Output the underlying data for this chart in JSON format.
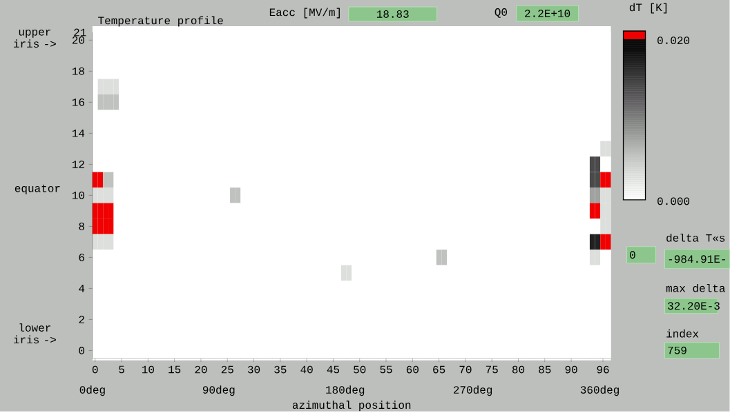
{
  "chart_data": {
    "type": "heatmap",
    "title": "Temperature profile",
    "xlabel": "azimuthal position",
    "clabel": "dT [K]",
    "categories": [
      "0",
      null,
      null,
      null,
      null,
      "5",
      null,
      null,
      null,
      null,
      "10",
      null,
      null,
      null,
      null,
      "15",
      null,
      null,
      null,
      null,
      "20",
      null,
      null,
      null,
      null,
      "25",
      null,
      null,
      null,
      null,
      "30",
      null,
      null,
      null,
      null,
      "35",
      null,
      null,
      null,
      null,
      "40",
      null,
      null,
      null,
      null,
      "45",
      null,
      null,
      null,
      null,
      "50",
      null,
      null,
      null,
      null,
      "55",
      null,
      null,
      null,
      null,
      "60",
      null,
      null,
      null,
      null,
      "65",
      null,
      null,
      null,
      null,
      "70",
      null,
      null,
      null,
      null,
      "75",
      null,
      null,
      null,
      null,
      "80",
      null,
      null,
      null,
      null,
      "85",
      null,
      null,
      null,
      null,
      "90",
      null,
      null,
      null,
      null,
      null,
      "96",
      null
    ],
    "y_categories": [
      "20",
      null,
      "18",
      null,
      "16",
      null,
      "14",
      null,
      "12",
      null,
      "10",
      null,
      "8",
      null,
      "6",
      null,
      "4",
      null,
      "2",
      null,
      "0"
    ],
    "cells": [
      [
        0,
        0,
        0,
        0,
        0,
        0,
        0,
        0,
        0,
        0,
        0,
        0,
        0,
        0,
        0,
        0,
        0,
        0,
        0,
        0,
        0,
        0,
        0,
        0,
        0,
        0,
        0,
        0,
        0,
        0,
        0,
        0,
        0,
        0,
        0,
        0,
        0,
        0,
        0,
        0,
        0,
        0,
        0,
        0,
        0,
        0,
        0,
        0,
        0,
        0,
        0,
        0,
        0,
        0,
        0,
        0,
        0,
        0,
        0,
        0,
        0,
        0,
        0,
        0,
        0,
        0,
        0,
        0,
        0,
        0,
        0,
        0,
        0,
        0,
        0,
        0,
        0,
        0,
        0,
        0,
        0,
        0,
        0,
        0,
        0,
        0,
        0,
        0,
        0,
        0,
        0,
        0,
        0,
        0,
        0,
        0,
        0,
        0
      ],
      [
        0,
        0,
        0,
        0,
        0,
        0,
        0,
        0,
        0,
        0,
        0,
        0,
        0,
        0,
        0,
        0,
        0,
        0,
        0,
        0,
        0,
        0,
        0,
        0,
        0,
        0,
        0,
        0,
        0,
        0,
        0,
        0,
        0,
        0,
        0,
        0,
        0,
        0,
        0,
        0,
        0,
        0,
        0,
        0,
        0,
        0,
        0,
        0,
        0,
        0,
        0,
        0,
        0,
        0,
        0,
        0,
        0,
        0,
        0,
        0,
        0,
        0,
        0,
        0,
        0,
        0,
        0,
        0,
        0,
        0,
        0,
        0,
        0,
        0,
        0,
        0,
        0,
        0,
        0,
        0,
        0,
        0,
        0,
        0,
        0,
        0,
        0,
        0,
        0,
        0,
        0,
        0,
        0,
        0,
        0,
        0,
        0,
        0
      ],
      [
        0,
        0,
        0,
        0,
        0,
        0,
        0,
        0,
        0,
        0,
        0,
        0,
        0,
        0,
        0,
        0,
        0,
        0,
        0,
        0,
        0,
        0,
        0,
        0,
        0,
        0,
        0,
        0,
        0,
        0,
        0,
        0,
        0,
        0,
        0,
        0,
        0,
        0,
        0,
        0,
        0,
        0,
        0,
        0,
        0,
        0,
        0,
        0,
        0,
        0,
        0,
        0,
        0,
        0,
        0,
        0,
        0,
        0,
        0,
        0,
        0,
        0,
        0,
        0,
        0,
        0,
        0,
        0,
        0,
        0,
        0,
        0,
        0,
        0,
        0,
        0,
        0,
        0,
        0,
        0,
        0,
        0,
        0,
        0,
        0,
        0,
        0,
        0,
        0,
        0,
        0,
        0,
        0,
        0,
        0,
        0,
        0,
        0
      ],
      [
        0,
        0.0033,
        0.0033,
        0.0033,
        0.0033,
        0,
        0,
        0,
        0,
        0,
        0,
        0,
        0,
        0,
        0,
        0,
        0,
        0,
        0,
        0,
        0,
        0,
        0,
        0,
        0,
        0,
        0,
        0,
        0,
        0,
        0,
        0,
        0,
        0,
        0,
        0,
        0,
        0,
        0,
        0,
        0,
        0,
        0,
        0,
        0,
        0,
        0,
        0,
        0,
        0,
        0,
        0,
        0,
        0,
        0,
        0,
        0,
        0,
        0,
        0,
        0,
        0,
        0,
        0,
        0,
        0,
        0,
        0,
        0,
        0,
        0,
        0,
        0,
        0,
        0,
        0,
        0,
        0,
        0,
        0,
        0,
        0,
        0,
        0,
        0,
        0,
        0,
        0,
        0,
        0,
        0,
        0,
        0,
        0,
        0,
        0,
        0,
        0
      ],
      [
        0,
        0.0056,
        0.0056,
        0.0056,
        0.0056,
        0,
        0,
        0,
        0,
        0,
        0,
        0,
        0,
        0,
        0,
        0,
        0,
        0,
        0,
        0,
        0,
        0,
        0,
        0,
        0,
        0,
        0,
        0,
        0,
        0,
        0,
        0,
        0,
        0,
        0,
        0,
        0,
        0,
        0,
        0,
        0,
        0,
        0,
        0,
        0,
        0,
        0,
        0,
        0,
        0,
        0,
        0,
        0,
        0,
        0,
        0,
        0,
        0,
        0,
        0,
        0,
        0,
        0,
        0,
        0,
        0,
        0,
        0,
        0,
        0,
        0,
        0,
        0,
        0,
        0,
        0,
        0,
        0,
        0,
        0,
        0,
        0,
        0,
        0,
        0,
        0,
        0,
        0,
        0,
        0,
        0,
        0,
        0,
        0,
        0,
        0,
        0,
        0
      ],
      [
        0,
        0,
        0,
        0,
        0,
        0,
        0,
        0,
        0,
        0,
        0,
        0,
        0,
        0,
        0,
        0,
        0,
        0,
        0,
        0,
        0,
        0,
        0,
        0,
        0,
        0,
        0,
        0,
        0,
        0,
        0,
        0,
        0,
        0,
        0,
        0,
        0,
        0,
        0,
        0,
        0,
        0,
        0,
        0,
        0,
        0,
        0,
        0,
        0,
        0,
        0,
        0,
        0,
        0,
        0,
        0,
        0,
        0,
        0,
        0,
        0,
        0,
        0,
        0,
        0,
        0,
        0,
        0,
        0,
        0,
        0,
        0,
        0,
        0,
        0,
        0,
        0,
        0,
        0,
        0,
        0,
        0,
        0,
        0,
        0,
        0,
        0,
        0,
        0,
        0,
        0,
        0,
        0,
        0,
        0,
        0,
        0,
        0
      ],
      [
        0,
        0,
        0,
        0,
        0,
        0,
        0,
        0,
        0,
        0,
        0,
        0,
        0,
        0,
        0,
        0,
        0,
        0,
        0,
        0,
        0,
        0,
        0,
        0,
        0,
        0,
        0,
        0,
        0,
        0,
        0,
        0,
        0,
        0,
        0,
        0,
        0,
        0,
        0,
        0,
        0,
        0,
        0,
        0,
        0,
        0,
        0,
        0,
        0,
        0,
        0,
        0,
        0,
        0,
        0,
        0,
        0,
        0,
        0,
        0,
        0,
        0,
        0,
        0,
        0,
        0,
        0,
        0,
        0,
        0,
        0,
        0,
        0,
        0,
        0,
        0,
        0,
        0,
        0,
        0,
        0,
        0,
        0,
        0,
        0,
        0,
        0,
        0,
        0,
        0,
        0,
        0,
        0,
        0,
        0,
        0,
        0,
        0
      ],
      [
        0,
        0,
        0,
        0,
        0,
        0,
        0,
        0,
        0,
        0,
        0,
        0,
        0,
        0,
        0,
        0,
        0,
        0,
        0,
        0,
        0,
        0,
        0,
        0,
        0,
        0,
        0,
        0,
        0,
        0,
        0,
        0,
        0,
        0,
        0,
        0,
        0,
        0,
        0,
        0,
        0,
        0,
        0,
        0,
        0,
        0,
        0,
        0,
        0,
        0,
        0,
        0,
        0,
        0,
        0,
        0,
        0,
        0,
        0,
        0,
        0,
        0,
        0,
        0,
        0,
        0,
        0,
        0,
        0,
        0,
        0,
        0,
        0,
        0,
        0,
        0,
        0,
        0,
        0,
        0,
        0,
        0,
        0,
        0,
        0,
        0,
        0,
        0,
        0,
        0,
        0,
        0,
        0,
        0,
        0,
        0,
        0.0033,
        0.0033
      ],
      [
        0,
        0,
        0,
        0,
        0,
        0,
        0,
        0,
        0,
        0,
        0,
        0,
        0,
        0,
        0,
        0,
        0,
        0,
        0,
        0,
        0,
        0,
        0,
        0,
        0,
        0,
        0,
        0,
        0,
        0,
        0,
        0,
        0,
        0,
        0,
        0,
        0,
        0,
        0,
        0,
        0,
        0,
        0,
        0,
        0,
        0,
        0,
        0,
        0,
        0,
        0,
        0,
        0,
        0,
        0,
        0,
        0,
        0,
        0,
        0,
        0,
        0,
        0,
        0,
        0,
        0,
        0,
        0,
        0,
        0,
        0,
        0,
        0,
        0,
        0,
        0,
        0,
        0,
        0,
        0,
        0,
        0,
        0,
        0,
        0,
        0,
        0,
        0,
        0,
        0,
        0,
        0,
        0,
        0,
        0.014,
        0.014,
        0,
        0
      ],
      [
        0.021,
        0.021,
        0.0056,
        0.0056,
        0,
        0,
        0,
        0,
        0,
        0,
        0,
        0,
        0,
        0,
        0,
        0,
        0,
        0,
        0,
        0,
        0,
        0,
        0,
        0,
        0,
        0,
        0,
        0,
        0,
        0,
        0,
        0,
        0,
        0,
        0,
        0,
        0,
        0,
        0,
        0,
        0,
        0,
        0,
        0,
        0,
        0,
        0,
        0,
        0,
        0,
        0,
        0,
        0,
        0,
        0,
        0,
        0,
        0,
        0,
        0,
        0,
        0,
        0,
        0,
        0,
        0,
        0,
        0,
        0,
        0,
        0,
        0,
        0,
        0,
        0,
        0,
        0,
        0,
        0,
        0,
        0,
        0,
        0,
        0,
        0,
        0,
        0,
        0,
        0,
        0,
        0,
        0,
        0,
        0,
        0.014,
        0.014,
        0.021,
        0.021
      ],
      [
        0.0033,
        0.0033,
        0.0033,
        0.0033,
        0,
        0,
        0,
        0,
        0,
        0,
        0,
        0,
        0,
        0,
        0,
        0,
        0,
        0,
        0,
        0,
        0,
        0,
        0,
        0,
        0,
        0,
        0.0056,
        0.0056,
        0,
        0,
        0,
        0,
        0,
        0,
        0,
        0,
        0,
        0,
        0,
        0,
        0,
        0,
        0,
        0,
        0,
        0,
        0,
        0,
        0,
        0,
        0,
        0,
        0,
        0,
        0,
        0,
        0,
        0,
        0,
        0,
        0,
        0,
        0,
        0,
        0,
        0,
        0,
        0,
        0,
        0,
        0,
        0,
        0,
        0,
        0,
        0,
        0,
        0,
        0,
        0,
        0,
        0,
        0,
        0,
        0,
        0,
        0,
        0,
        0,
        0,
        0,
        0,
        0,
        0,
        0.0078,
        0.0078,
        0.0033,
        0.0033
      ],
      [
        0.021,
        0.021,
        0.021,
        0.021,
        0,
        0,
        0,
        0,
        0,
        0,
        0,
        0,
        0,
        0,
        0,
        0,
        0,
        0,
        0,
        0,
        0,
        0,
        0,
        0,
        0,
        0,
        0,
        0,
        0,
        0,
        0,
        0,
        0,
        0,
        0,
        0,
        0,
        0,
        0,
        0,
        0,
        0,
        0,
        0,
        0,
        0,
        0,
        0,
        0,
        0,
        0,
        0,
        0,
        0,
        0,
        0,
        0,
        0,
        0,
        0,
        0,
        0,
        0,
        0,
        0,
        0,
        0,
        0,
        0,
        0,
        0,
        0,
        0,
        0,
        0,
        0,
        0,
        0,
        0,
        0,
        0,
        0,
        0,
        0,
        0,
        0,
        0,
        0,
        0,
        0,
        0,
        0,
        0,
        0,
        0.021,
        0.021,
        0.0033,
        0.0033
      ],
      [
        0.021,
        0.021,
        0.021,
        0.021,
        0,
        0,
        0,
        0,
        0,
        0,
        0,
        0,
        0,
        0,
        0,
        0,
        0,
        0,
        0,
        0,
        0,
        0,
        0,
        0,
        0,
        0,
        0,
        0,
        0,
        0,
        0,
        0,
        0,
        0,
        0,
        0,
        0,
        0,
        0,
        0,
        0,
        0,
        0,
        0,
        0,
        0,
        0,
        0,
        0,
        0,
        0,
        0,
        0,
        0,
        0,
        0,
        0,
        0,
        0,
        0,
        0,
        0,
        0,
        0,
        0,
        0,
        0,
        0,
        0,
        0,
        0,
        0,
        0,
        0,
        0,
        0,
        0,
        0,
        0,
        0,
        0,
        0,
        0,
        0,
        0,
        0,
        0,
        0,
        0,
        0,
        0,
        0,
        0,
        0,
        0,
        0,
        0.0033,
        0.0033
      ],
      [
        0.0033,
        0.0033,
        0.0033,
        0.0033,
        0,
        0,
        0,
        0,
        0,
        0,
        0,
        0,
        0,
        0,
        0,
        0,
        0,
        0,
        0,
        0,
        0,
        0,
        0,
        0,
        0,
        0,
        0,
        0,
        0,
        0,
        0,
        0,
        0,
        0,
        0,
        0,
        0,
        0,
        0,
        0,
        0,
        0,
        0,
        0,
        0,
        0,
        0,
        0,
        0,
        0,
        0,
        0,
        0,
        0,
        0,
        0,
        0,
        0,
        0,
        0,
        0,
        0,
        0,
        0,
        0,
        0,
        0,
        0,
        0,
        0,
        0,
        0,
        0,
        0,
        0,
        0,
        0,
        0,
        0,
        0,
        0,
        0,
        0,
        0,
        0,
        0,
        0,
        0,
        0,
        0,
        0,
        0,
        0,
        0,
        0.017,
        0.017,
        0.021,
        0.021
      ],
      [
        0,
        0,
        0,
        0,
        0,
        0,
        0,
        0,
        0,
        0,
        0,
        0,
        0,
        0,
        0,
        0,
        0,
        0,
        0,
        0,
        0,
        0,
        0,
        0,
        0,
        0,
        0,
        0,
        0,
        0,
        0,
        0,
        0,
        0,
        0,
        0,
        0,
        0,
        0,
        0,
        0,
        0,
        0,
        0,
        0,
        0,
        0,
        0,
        0,
        0,
        0,
        0,
        0,
        0,
        0,
        0,
        0,
        0,
        0,
        0,
        0,
        0,
        0,
        0,
        0,
        0.0056,
        0.0056,
        0,
        0,
        0,
        0,
        0,
        0,
        0,
        0,
        0,
        0,
        0,
        0,
        0,
        0,
        0,
        0,
        0,
        0,
        0,
        0,
        0,
        0,
        0,
        0,
        0,
        0,
        0,
        0.0033,
        0.0033,
        0,
        0
      ],
      [
        0,
        0,
        0,
        0,
        0,
        0,
        0,
        0,
        0,
        0,
        0,
        0,
        0,
        0,
        0,
        0,
        0,
        0,
        0,
        0,
        0,
        0,
        0,
        0,
        0,
        0,
        0,
        0,
        0,
        0,
        0,
        0,
        0,
        0,
        0,
        0,
        0,
        0,
        0,
        0,
        0,
        0,
        0,
        0,
        0,
        0,
        0,
        0.0033,
        0.0033,
        0,
        0,
        0,
        0,
        0,
        0,
        0,
        0,
        0,
        0,
        0,
        0,
        0,
        0,
        0,
        0,
        0,
        0,
        0,
        0,
        0,
        0,
        0,
        0,
        0,
        0,
        0,
        0,
        0,
        0,
        0,
        0,
        0,
        0,
        0,
        0,
        0,
        0,
        0,
        0,
        0,
        0,
        0,
        0,
        0,
        0,
        0,
        0,
        0
      ],
      [
        0,
        0,
        0,
        0,
        0,
        0,
        0,
        0,
        0,
        0,
        0,
        0,
        0,
        0,
        0,
        0,
        0,
        0,
        0,
        0,
        0,
        0,
        0,
        0,
        0,
        0,
        0,
        0,
        0,
        0,
        0,
        0,
        0,
        0,
        0,
        0,
        0,
        0,
        0,
        0,
        0,
        0,
        0,
        0,
        0,
        0,
        0,
        0,
        0,
        0,
        0,
        0,
        0,
        0,
        0,
        0,
        0,
        0,
        0,
        0,
        0,
        0,
        0,
        0,
        0,
        0,
        0,
        0,
        0,
        0,
        0,
        0,
        0,
        0,
        0,
        0,
        0,
        0,
        0,
        0,
        0,
        0,
        0,
        0,
        0,
        0,
        0,
        0,
        0,
        0,
        0,
        0,
        0,
        0,
        0,
        0,
        0,
        0
      ],
      [
        0,
        0,
        0,
        0,
        0,
        0,
        0,
        0,
        0,
        0,
        0,
        0,
        0,
        0,
        0,
        0,
        0,
        0,
        0,
        0,
        0,
        0,
        0,
        0,
        0,
        0,
        0,
        0,
        0,
        0,
        0,
        0,
        0,
        0,
        0,
        0,
        0,
        0,
        0,
        0,
        0,
        0,
        0,
        0,
        0,
        0,
        0,
        0,
        0,
        0,
        0,
        0,
        0,
        0,
        0,
        0,
        0,
        0,
        0,
        0,
        0,
        0,
        0,
        0,
        0,
        0,
        0,
        0,
        0,
        0,
        0,
        0,
        0,
        0,
        0,
        0,
        0,
        0,
        0,
        0,
        0,
        0,
        0,
        0,
        0,
        0,
        0,
        0,
        0,
        0,
        0,
        0,
        0,
        0,
        0,
        0,
        0,
        0
      ],
      [
        0,
        0,
        0,
        0,
        0,
        0,
        0,
        0,
        0,
        0,
        0,
        0,
        0,
        0,
        0,
        0,
        0,
        0,
        0,
        0,
        0,
        0,
        0,
        0,
        0,
        0,
        0,
        0,
        0,
        0,
        0,
        0,
        0,
        0,
        0,
        0,
        0,
        0,
        0,
        0,
        0,
        0,
        0,
        0,
        0,
        0,
        0,
        0,
        0,
        0,
        0,
        0,
        0,
        0,
        0,
        0,
        0,
        0,
        0,
        0,
        0,
        0,
        0,
        0,
        0,
        0,
        0,
        0,
        0,
        0,
        0,
        0,
        0,
        0,
        0,
        0,
        0,
        0,
        0,
        0,
        0,
        0,
        0,
        0,
        0,
        0,
        0,
        0,
        0,
        0,
        0,
        0,
        0,
        0,
        0,
        0,
        0,
        0
      ],
      [
        0,
        0,
        0,
        0,
        0,
        0,
        0,
        0,
        0,
        0,
        0,
        0,
        0,
        0,
        0,
        0,
        0,
        0,
        0,
        0,
        0,
        0,
        0,
        0,
        0,
        0,
        0,
        0,
        0,
        0,
        0,
        0,
        0,
        0,
        0,
        0,
        0,
        0,
        0,
        0,
        0,
        0,
        0,
        0,
        0,
        0,
        0,
        0,
        0,
        0,
        0,
        0,
        0,
        0,
        0,
        0,
        0,
        0,
        0,
        0,
        0,
        0,
        0,
        0,
        0,
        0,
        0,
        0,
        0,
        0,
        0,
        0,
        0,
        0,
        0,
        0,
        0,
        0,
        0,
        0,
        0,
        0,
        0,
        0,
        0,
        0,
        0,
        0,
        0,
        0,
        0,
        0,
        0,
        0,
        0,
        0,
        0,
        0
      ],
      [
        0,
        0,
        0,
        0,
        0,
        0,
        0,
        0,
        0,
        0,
        0,
        0,
        0,
        0,
        0,
        0,
        0,
        0,
        0,
        0,
        0,
        0,
        0,
        0,
        0,
        0,
        0,
        0,
        0,
        0,
        0,
        0,
        0,
        0,
        0,
        0,
        0,
        0,
        0,
        0,
        0,
        0,
        0,
        0,
        0,
        0,
        0,
        0,
        0,
        0,
        0,
        0,
        0,
        0,
        0,
        0,
        0,
        0,
        0,
        0,
        0,
        0,
        0,
        0,
        0,
        0,
        0,
        0,
        0,
        0,
        0,
        0,
        0,
        0,
        0,
        0,
        0,
        0,
        0,
        0,
        0,
        0,
        0,
        0,
        0,
        0,
        0,
        0,
        0,
        0,
        0,
        0,
        0,
        0,
        0,
        0,
        0,
        0
      ]
    ],
    "clim": [
      0,
      0.021
    ],
    "cticks": [
      {
        "value": 0,
        "label": "0.000"
      },
      {
        "value": 0.02,
        "label": "0.020"
      }
    ],
    "annotations": [
      "21",
      "0deg",
      "90deg",
      "180deg",
      "270deg",
      "360deg",
      "upper iris ->",
      "equator",
      "lower iris ->",
      "Eacc [MV/m]",
      "18.83",
      "Q0",
      "2.2E+10",
      "0",
      "delta T«s",
      "-984.91E-",
      "max delta",
      "32.20E-3",
      "index",
      "759"
    ]
  }
}
